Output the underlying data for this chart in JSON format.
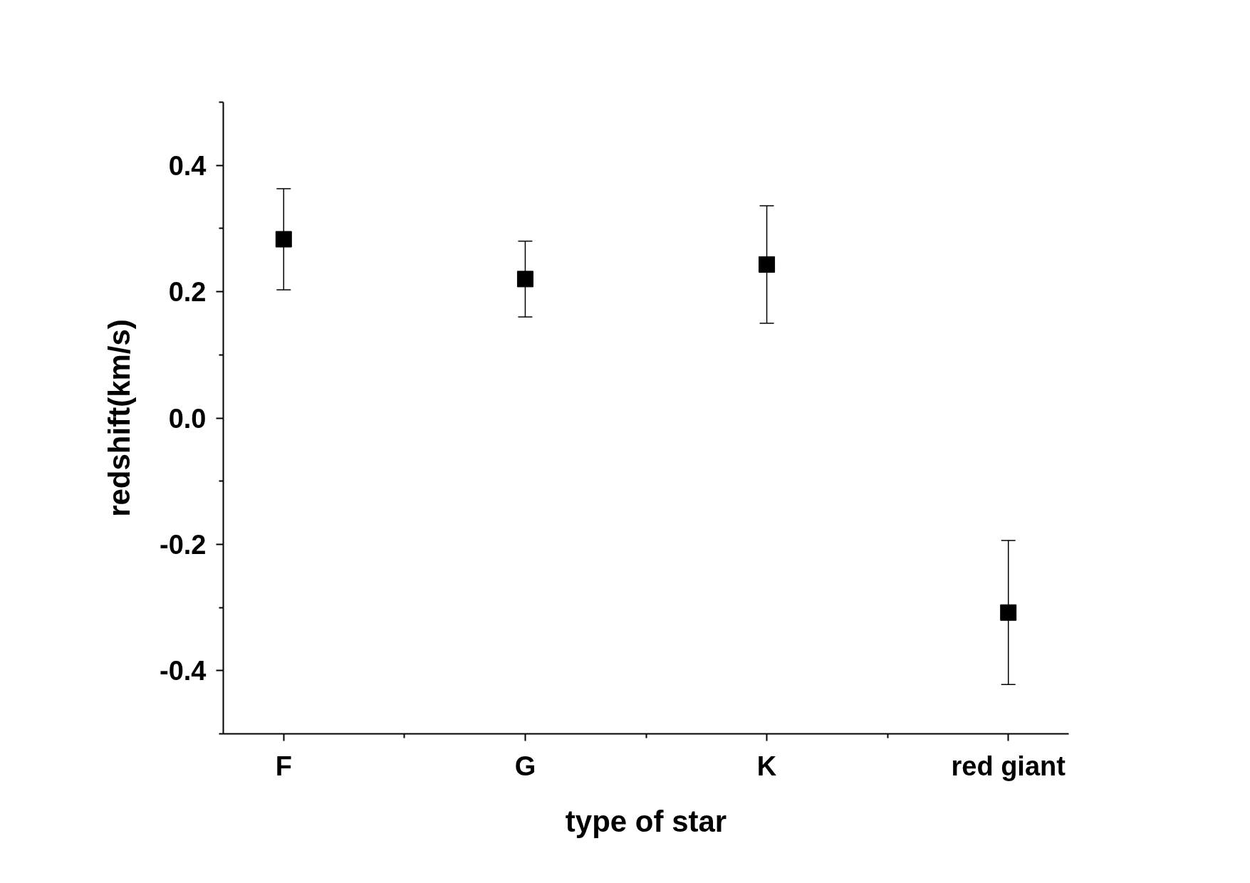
{
  "chart_data": {
    "type": "scatter",
    "xlabel": "type of star",
    "ylabel": "redshift(km/s)",
    "categories": [
      "F",
      "G",
      "K",
      "red giant"
    ],
    "series": [
      {
        "color": "#000000",
        "values": [
          0.283,
          0.22,
          0.243,
          -0.308
        ],
        "errors": [
          0.08,
          0.06,
          0.093,
          0.114
        ]
      }
    ],
    "ylim": [
      -0.5,
      0.5
    ],
    "yticks": [
      -0.4,
      -0.2,
      {
        "value": 0,
        "label": "0.0"
      },
      0.2,
      0.4
    ],
    "marker": "square",
    "grid": false
  }
}
